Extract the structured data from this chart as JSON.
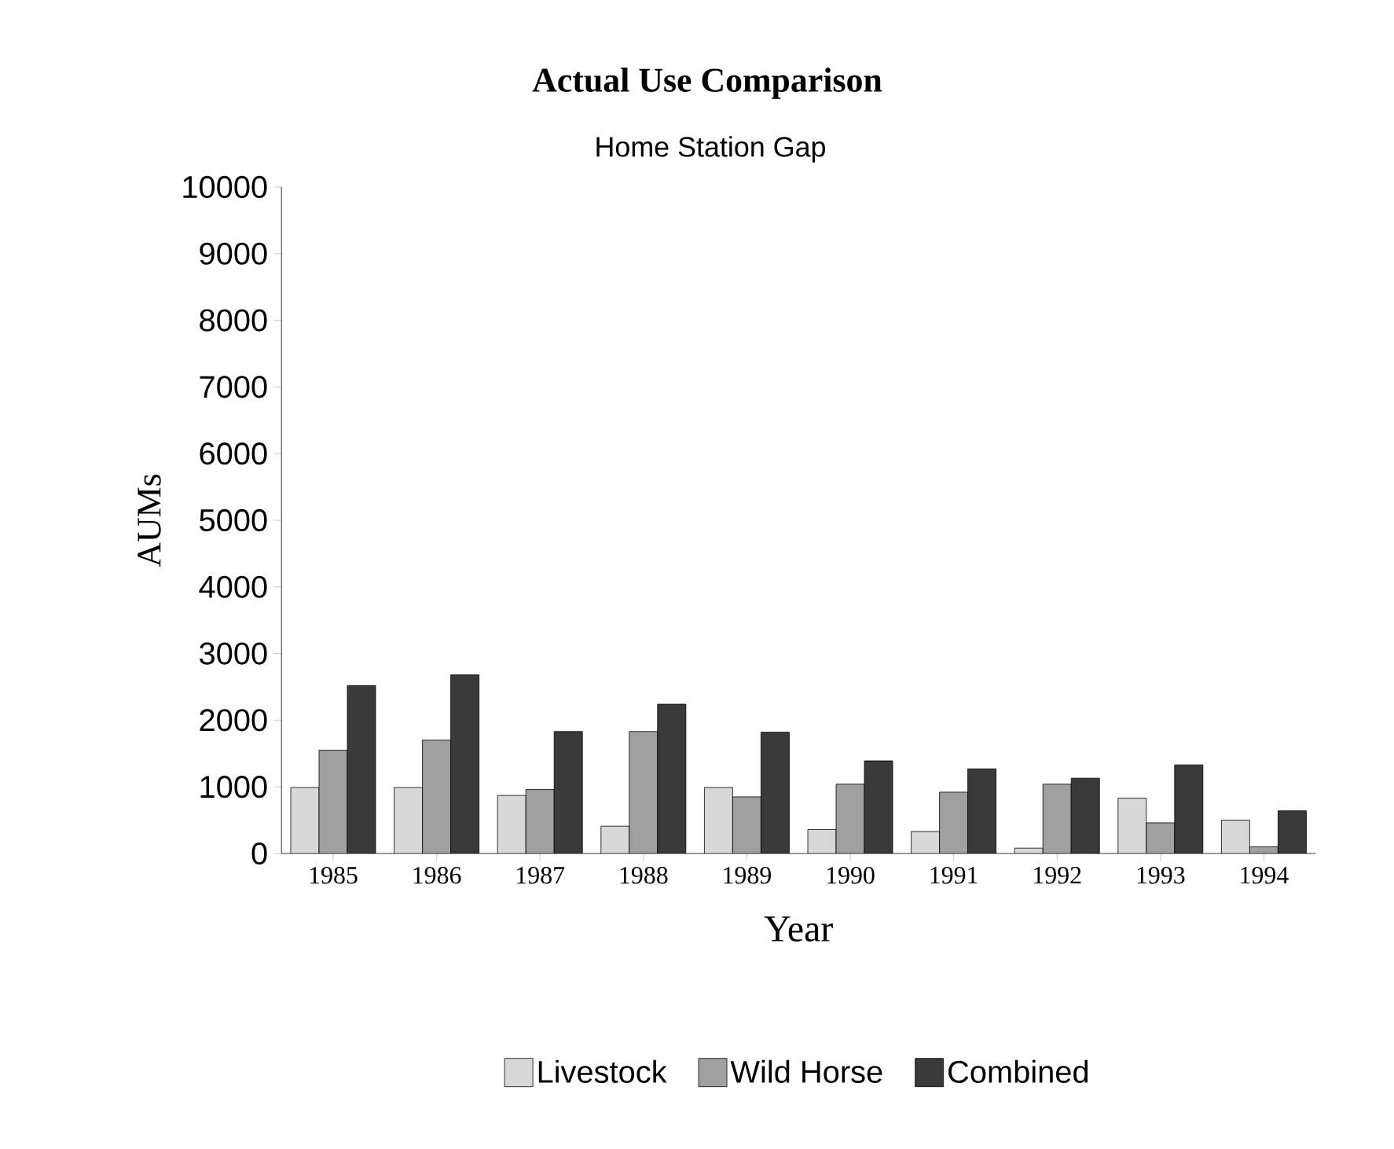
{
  "chart_data": {
    "type": "bar",
    "title": "Actual Use Comparison",
    "subtitle": "Home Station Gap",
    "xlabel": "Year",
    "ylabel": "AUMs",
    "categories": [
      "1985",
      "1986",
      "1987",
      "1988",
      "1989",
      "1990",
      "1991",
      "1992",
      "1993",
      "1994"
    ],
    "series": [
      {
        "name": "Livestock",
        "color": "#d8d8d8",
        "values": [
          990,
          990,
          870,
          410,
          990,
          360,
          330,
          80,
          830,
          500
        ]
      },
      {
        "name": "Wild Horse",
        "color": "#a0a0a0",
        "values": [
          1550,
          1700,
          960,
          1830,
          850,
          1040,
          920,
          1040,
          460,
          100
        ]
      },
      {
        "name": "Combined",
        "color": "#3a3a3a",
        "values": [
          2520,
          2680,
          1830,
          2240,
          1820,
          1390,
          1270,
          1130,
          1330,
          640
        ]
      }
    ],
    "ylim": [
      0,
      10000
    ],
    "yticks": [
      0,
      1000,
      2000,
      3000,
      4000,
      5000,
      6000,
      7000,
      8000,
      9000,
      10000
    ],
    "grid": false,
    "legend": "bottom"
  }
}
